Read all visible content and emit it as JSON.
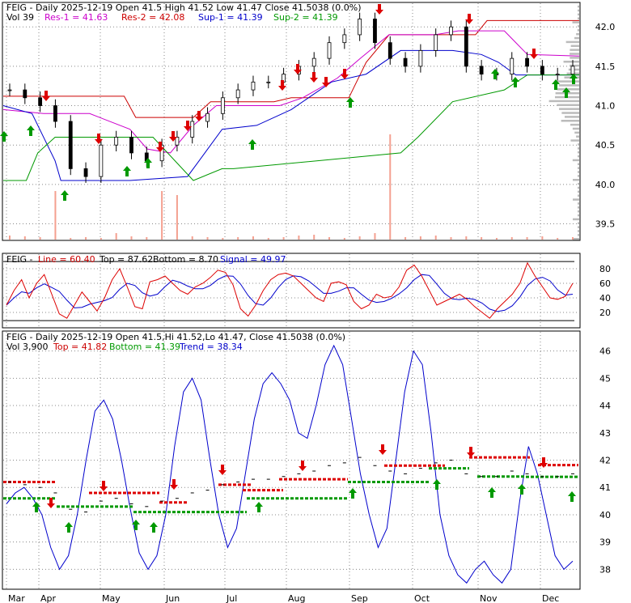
{
  "panel1": {
    "header1": "FEIG - Daily 2025-12-19 Open 41.5   High 41.52   Low 41.47   Close 41.5038 (0.0%)",
    "header2_vol": "Vol 39",
    "header2_res1": "Res-1 = 41.63",
    "header2_res2": "Res-2 = 42.08",
    "header2_sup1": "Sup-1 = 41.39",
    "header2_sup2": "Sup-2 = 41.39"
  },
  "panel2": {
    "header_ticker": "FEIG -",
    "header_line": "Line = 60.40",
    "header_top": "Top = 87.62",
    "header_bottom": "Bottom = 8.70",
    "header_signal": "Signal = 49.97"
  },
  "panel3": {
    "header1": "FEIG - Daily 2025-12-19 Open 41.5,Hi 41.52,Lo 41.47, Close 41.5038 (0.0%)",
    "header2_vol": "Vol 3,900",
    "header2_top": "Top = 41.82",
    "header2_bottom": "Bottom = 41.39",
    "header2_trend": "Trend = 38.34"
  },
  "colors": {
    "res1": "#cc00cc",
    "res2": "#cc0000",
    "sup1": "#0000cc",
    "sup2": "#009900",
    "volume": "#f4a090",
    "arrow_up": "#009900",
    "arrow_down": "#dd0000",
    "line": "#dd0000",
    "signal": "#0000cc",
    "trend": "#0000cc"
  },
  "chart_data": [
    {
      "type": "candlestick",
      "ticker": "FEIG",
      "months": [
        "Mar",
        "Apr",
        "May",
        "Jun",
        "Jul",
        "Aug",
        "Sep",
        "Oct",
        "Nov",
        "Dec"
      ],
      "y_ticks": [
        39.5,
        40.0,
        40.5,
        41.0,
        41.5,
        42.0
      ],
      "ylim": [
        39.3,
        42.3
      ],
      "close_approx": [
        41.2,
        41.1,
        41.0,
        40.8,
        40.2,
        40.1,
        40.5,
        40.6,
        40.4,
        40.3,
        40.5,
        40.6,
        40.8,
        40.9,
        41.1,
        41.2,
        41.3,
        41.3,
        41.4,
        41.5,
        41.6,
        41.8,
        41.9,
        42.1,
        41.8,
        41.6,
        41.5,
        41.7,
        41.9,
        42.0,
        41.5,
        41.4,
        41.4,
        41.6,
        41.5,
        41.4,
        41.4,
        41.5
      ],
      "res1": 41.63,
      "res2": 42.08,
      "sup1": 41.39,
      "sup2": 41.39
    },
    {
      "type": "line",
      "y_ticks": [
        20,
        40,
        60,
        80
      ],
      "ylim": [
        0,
        100
      ],
      "top": 87.62,
      "bottom": 8.7,
      "line_last": 60.4,
      "signal_last": 49.97
    },
    {
      "type": "line",
      "y_ticks": [
        38,
        39,
        40,
        41,
        42,
        43,
        44,
        45,
        46
      ],
      "ylim": [
        37.3,
        46.7
      ],
      "top": 41.82,
      "bottom": 41.39,
      "trend_last": 38.34
    }
  ]
}
